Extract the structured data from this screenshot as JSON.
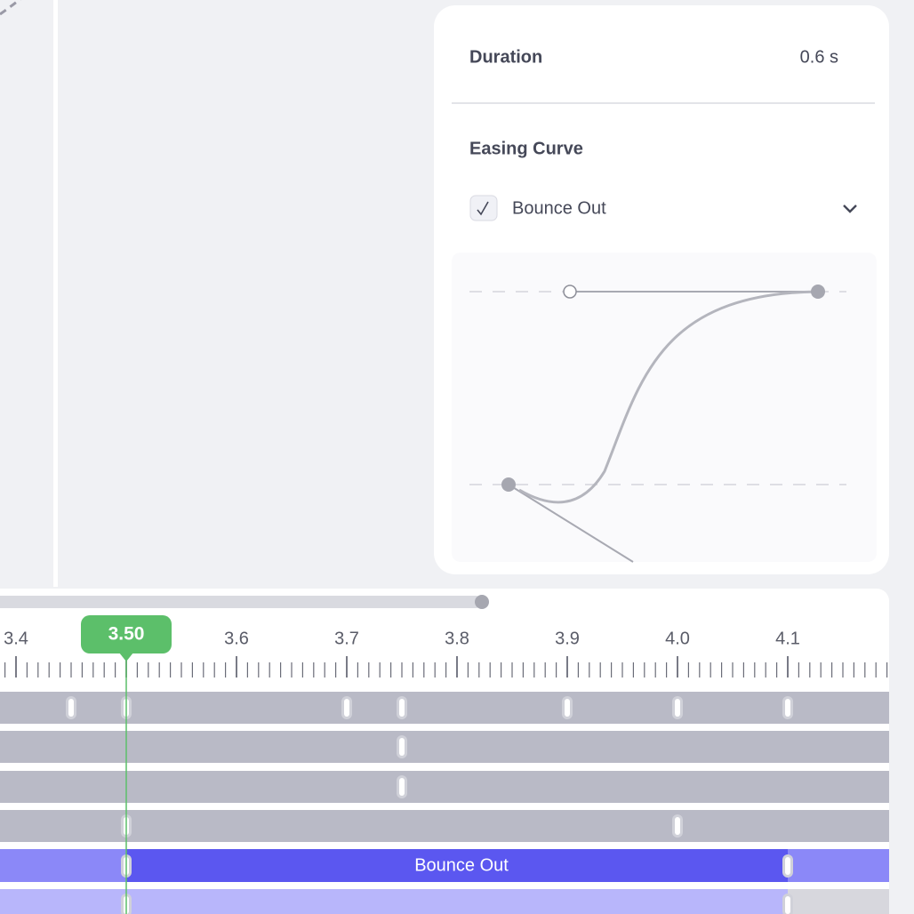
{
  "panel": {
    "duration": {
      "label": "Duration",
      "value": "0.6 s"
    },
    "easing": {
      "label": "Easing Curve",
      "selected": "Bounce Out"
    }
  },
  "timeline": {
    "ruler_labels": [
      "3.4",
      "3.6",
      "3.7",
      "3.8",
      "3.9",
      "4.0",
      "4.1",
      "4"
    ],
    "playhead": "3.50",
    "clip": {
      "label": "Bounce Out"
    }
  }
}
